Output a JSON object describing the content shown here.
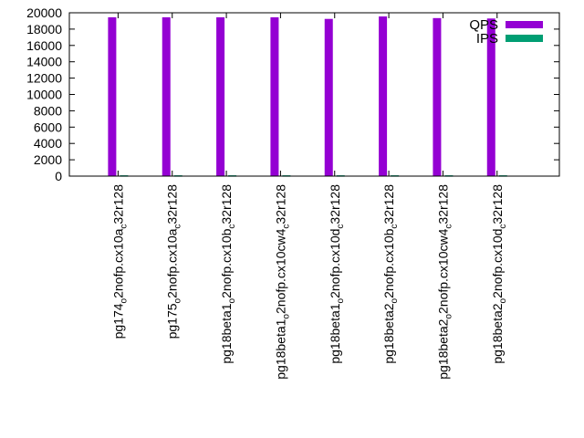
{
  "chart_data": {
    "type": "bar",
    "title": "",
    "xlabel": "",
    "ylabel": "",
    "ylim": [
      0,
      20000
    ],
    "yticks": [
      0,
      2000,
      4000,
      6000,
      8000,
      10000,
      12000,
      14000,
      16000,
      18000,
      20000
    ],
    "legend_position": "top-right",
    "categories": [
      "pg174_o2nofp.cx10a_c32r128",
      "pg175_o2nofp.cx10a_c32r128",
      "pg18beta1_o2nofp.cx10b_c32r128",
      "pg18beta1_o2nofp.cx10cw4_c32r128",
      "pg18beta1_o2nofp.cx10d_c32r128",
      "pg18beta2_o2nofp.cx10b_c32r128",
      "pg18beta2_o2nofp.cx10cw4_c32r128",
      "pg18beta2_o2nofp.cx10d_c32r128"
    ],
    "category_parts": [
      [
        "pg174",
        "o",
        "2nofp.cx10a",
        "c",
        "32r128"
      ],
      [
        "pg175",
        "o",
        "2nofp.cx10a",
        "c",
        "32r128"
      ],
      [
        "pg18beta1",
        "o",
        "2nofp.cx10b",
        "c",
        "32r128"
      ],
      [
        "pg18beta1",
        "o",
        "2nofp.cx10cw4",
        "c",
        "32r128"
      ],
      [
        "pg18beta1",
        "o",
        "2nofp.cx10d",
        "c",
        "32r128"
      ],
      [
        "pg18beta2",
        "o",
        "2nofp.cx10b",
        "c",
        "32r128"
      ],
      [
        "pg18beta2",
        "o",
        "2nofp.cx10cw4",
        "c",
        "32r128"
      ],
      [
        "pg18beta2",
        "o",
        "2nofp.cx10d",
        "c",
        "32r128"
      ]
    ],
    "series": [
      {
        "name": "QPS",
        "color": "#9400d3",
        "values": [
          19450,
          19450,
          19450,
          19450,
          19250,
          19550,
          19350,
          19300
        ]
      },
      {
        "name": "IPS",
        "color": "#009e73",
        "values": [
          100,
          100,
          100,
          100,
          100,
          100,
          100,
          100
        ]
      }
    ]
  }
}
